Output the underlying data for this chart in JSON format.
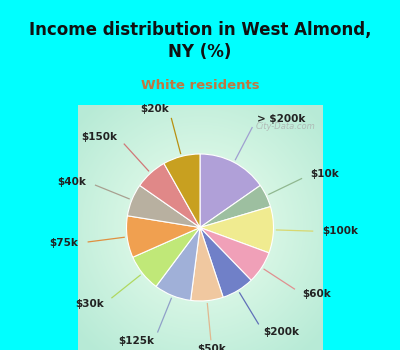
{
  "title": "Income distribution in West Almond,\nNY (%)",
  "subtitle": "White residents",
  "title_color": "#111111",
  "subtitle_color": "#c07840",
  "bg_cyan": "#00ffff",
  "labels": [
    "> $200k",
    "$10k",
    "$100k",
    "$60k",
    "$200k",
    "$50k",
    "$125k",
    "$30k",
    "$75k",
    "$40k",
    "$150k",
    "$20k"
  ],
  "values": [
    15,
    5,
    10,
    7,
    7,
    7,
    8,
    8,
    9,
    7,
    7,
    8
  ],
  "colors": [
    "#b0a0d8",
    "#9dbfa0",
    "#f0eb90",
    "#f0a0b8",
    "#7080c8",
    "#f0c8a0",
    "#a0b0d8",
    "#c0e878",
    "#f0a050",
    "#b8b0a0",
    "#e08888",
    "#c8a020"
  ],
  "label_colors": [
    "#a0a0d0",
    "#90b890",
    "#d8d870",
    "#e09090",
    "#6070b8",
    "#e0b890",
    "#90a0c8",
    "#b0d860",
    "#e09040",
    "#a8a090",
    "#d07878",
    "#b89010"
  ],
  "watermark": "City-Data.com"
}
